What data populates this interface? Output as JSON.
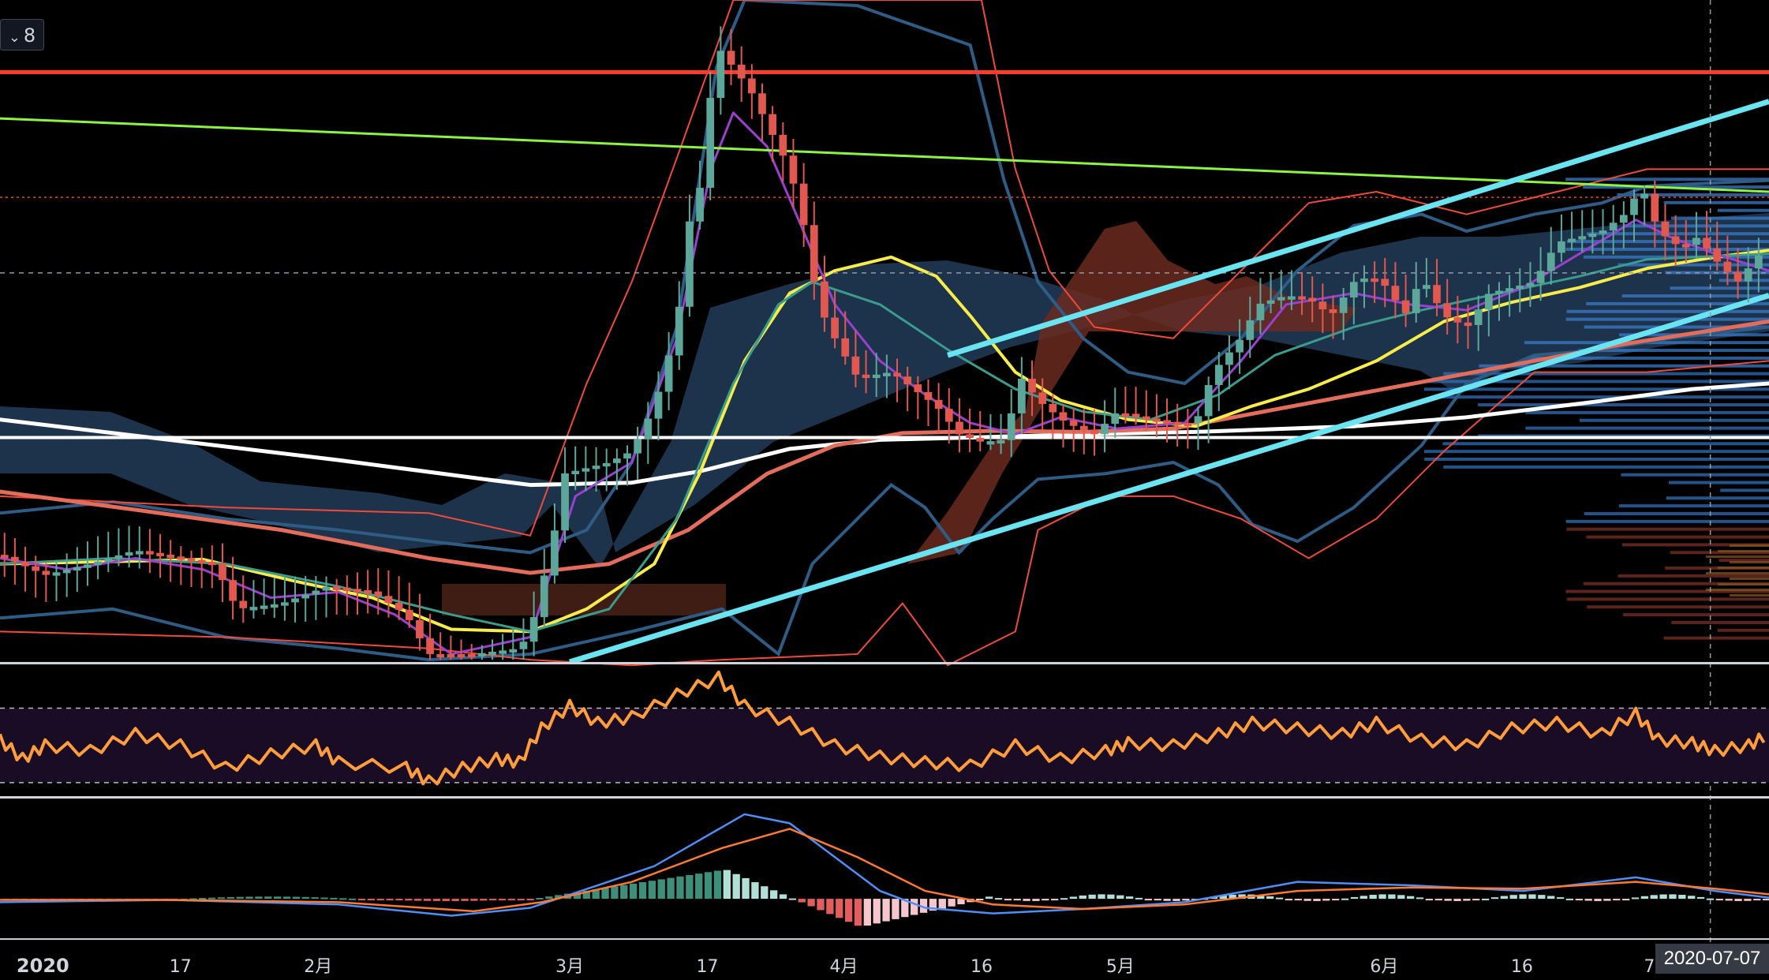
{
  "legend": {
    "collapse_label": "8"
  },
  "crosshair_date": "2020-07-07",
  "colors": {
    "background": "#000000",
    "bull": "#5ca79a",
    "bear": "#e0584f",
    "resistance": "#ff3b30",
    "trend_green": "#8ef442",
    "channel": "#6ae4f0",
    "ma_white": "#ffffff",
    "ma_red": "#e36c5a",
    "ma_yellow": "#f7ec4a",
    "ma_teal": "#3a9c8c",
    "ma_purple": "#9b3fd0",
    "bollinger": "#2e5c84",
    "envelope": "#f04a3a",
    "rsi": "#ff9c3b",
    "macd": "#4d8ef7",
    "signal": "#ff7a30"
  },
  "chart_data": {
    "type": "candlestick",
    "x_axis": {
      "tick_labels": [
        "2020",
        "17",
        "2月",
        "3月",
        "17",
        "4月",
        "16",
        "5月",
        "6月",
        "16",
        "7"
      ]
    },
    "indicators": [
      "moving averages (5 lines)",
      "Bollinger bands",
      "Ichimoku cloud",
      "volume profile",
      "RSI",
      "MACD"
    ],
    "overlay_lines": [
      "horizontal resistance (red)",
      "descending trendline (green)",
      "rising channel (cyan)"
    ],
    "rsi_reference_lines": [
      "upper dashed",
      "lower dashed"
    ],
    "legend_placement": "top-left"
  }
}
